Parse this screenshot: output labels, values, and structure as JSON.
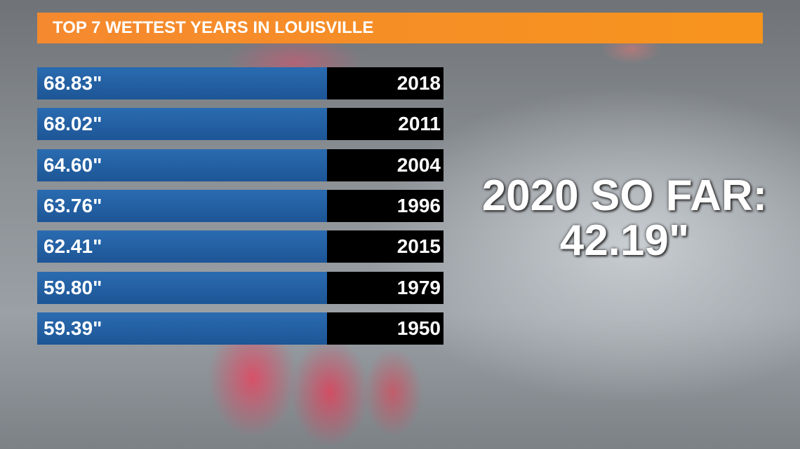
{
  "header": {
    "title": "TOP 7 WETTEST YEARS IN LOUISVILLE"
  },
  "table": {
    "rows": [
      [
        "68.83\"",
        "2018"
      ],
      [
        "68.02\"",
        "2011"
      ],
      [
        "64.60\"",
        "2004"
      ],
      [
        "63.76\"",
        "1996"
      ],
      [
        "62.41\"",
        "2015"
      ],
      [
        "59.80\"",
        "1979"
      ],
      [
        "59.39\"",
        "1950"
      ]
    ]
  },
  "callout": {
    "lines": [
      "2020 SO FAR:",
      "42.19\""
    ]
  }
}
